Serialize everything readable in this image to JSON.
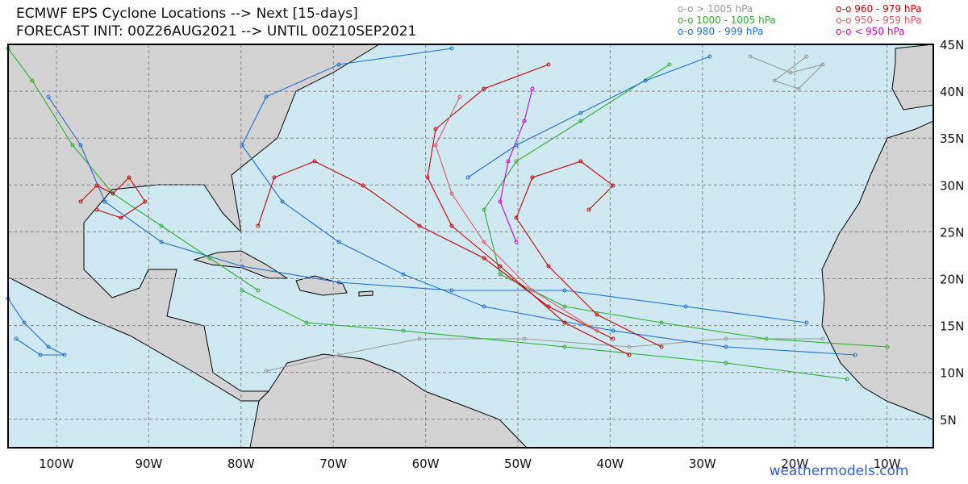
{
  "header": {
    "title": "ECMWF EPS Cyclone Locations --> Next [15-days]",
    "subtitle": "FORECAST INIT: 00Z26AUG2021 --> UNTIL 00Z10SEP2021"
  },
  "legend": [
    {
      "label": "o-o > 1005 hPa",
      "color": "#999999"
    },
    {
      "label": "o-o 1000 - 1005 hPa",
      "color": "#2fae2f"
    },
    {
      "label": "o-o 980 - 999 hPa",
      "color": "#1f6fd1"
    },
    {
      "label": "o-o 960 - 979 hPa",
      "color": "#cc0000"
    },
    {
      "label": "o-o 950 - 959 hPa",
      "color": "#dd5a64"
    },
    {
      "label": "o-o < 950 hPa",
      "color": "#cc00cc"
    }
  ],
  "map": {
    "lon_labels": [
      "100W",
      "90W",
      "80W",
      "70W",
      "60W",
      "50W",
      "40W",
      "30W",
      "20W",
      "10W"
    ],
    "lat_labels": [
      "45N",
      "40N",
      "35N",
      "30N",
      "25N",
      "20N",
      "15N",
      "10N",
      "5N"
    ]
  },
  "footer": {
    "watermark": "weathermodels.com"
  }
}
